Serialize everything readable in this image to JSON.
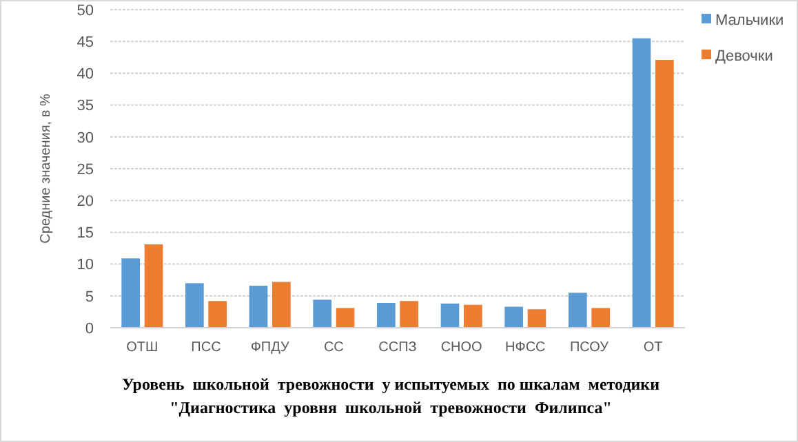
{
  "chart_data": {
    "type": "bar",
    "title": "Уровень  школьной  тревожности  у испытуемых  по шкалам  методики\n\"Диагностика  уровня  школьной  тревожности  Филипса\"",
    "ylabel": "Средние значения, в %",
    "categories": [
      "ОТШ",
      "ПСС",
      "ФПДУ",
      "СС",
      "ССПЗ",
      "СНОО",
      "НФСС",
      "ПСОУ",
      "ОТ"
    ],
    "series": [
      {
        "name": "Мальчики",
        "color": "#5b9bd5",
        "values": [
          10.9,
          7.0,
          6.6,
          4.4,
          3.9,
          3.8,
          3.3,
          5.5,
          45.5
        ]
      },
      {
        "name": "Девочки",
        "color": "#ed7d31",
        "values": [
          13.1,
          4.2,
          7.2,
          3.1,
          4.2,
          3.6,
          2.9,
          3.1,
          42.1
        ]
      }
    ],
    "ylim": [
      0,
      50
    ],
    "yticks": [
      0,
      5,
      10,
      15,
      20,
      25,
      30,
      35,
      40,
      45,
      50
    ],
    "grid": "y",
    "legend": "right"
  }
}
